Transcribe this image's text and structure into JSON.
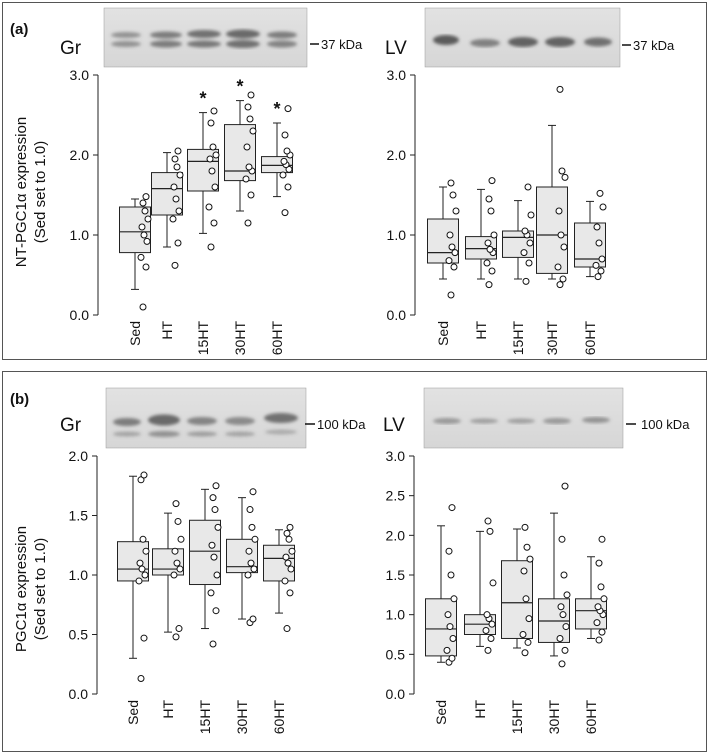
{
  "panels": [
    {
      "label": "(a)",
      "ylabel_line1": "NT-PGC1α expression",
      "ylabel_line2": "(Sed set to 1.0)",
      "blots": [
        {
          "tissue": "Gr",
          "marker": "37 kDa"
        },
        {
          "tissue": "LV",
          "marker": "37 kDa"
        }
      ]
    },
    {
      "label": "(b)",
      "ylabel_line1": "PGC1α expression",
      "ylabel_line2": "(Sed set to 1.0)",
      "blots": [
        {
          "tissue": "Gr",
          "marker": "100 kDa"
        },
        {
          "tissue": "LV",
          "marker": "100 kDa"
        }
      ]
    }
  ],
  "chart_data": [
    {
      "type": "box",
      "title": "Gr",
      "panel": "(a)",
      "xlabel": "",
      "ylabel": "NT-PGC1α expression (Sed set to 1.0)",
      "ylim": [
        0,
        3.0
      ],
      "yticks": [
        0.0,
        1.0,
        2.0,
        3.0
      ],
      "ytick_labels": [
        "0.0",
        "1.0",
        "2.0",
        "3.0"
      ],
      "categories": [
        "Sed",
        "HT",
        "15HT",
        "30HT",
        "60HT"
      ],
      "boxes": [
        {
          "min": 0.32,
          "q1": 0.78,
          "median": 1.04,
          "q3": 1.35,
          "max": 1.45,
          "points": [
            0.1,
            0.6,
            0.72,
            0.92,
            1.0,
            1.1,
            1.2,
            1.3,
            1.4,
            1.48
          ]
        },
        {
          "min": 0.85,
          "q1": 1.25,
          "median": 1.58,
          "q3": 1.78,
          "max": 2.03,
          "points": [
            0.62,
            0.9,
            1.2,
            1.3,
            1.45,
            1.6,
            1.75,
            1.85,
            1.95,
            2.05
          ]
        },
        {
          "min": 1.02,
          "q1": 1.55,
          "median": 1.92,
          "q3": 2.07,
          "max": 2.53,
          "points": [
            0.85,
            1.15,
            1.35,
            1.6,
            1.8,
            1.95,
            2.0,
            2.1,
            2.4,
            2.55
          ]
        },
        {
          "min": 1.3,
          "q1": 1.68,
          "median": 1.8,
          "q3": 2.38,
          "max": 2.68,
          "points": [
            1.15,
            1.5,
            1.7,
            1.8,
            1.85,
            2.1,
            2.3,
            2.45,
            2.6,
            2.75
          ]
        },
        {
          "min": 1.48,
          "q1": 1.78,
          "median": 1.87,
          "q3": 1.98,
          "max": 2.4,
          "points": [
            1.28,
            1.6,
            1.75,
            1.82,
            1.88,
            1.92,
            2.0,
            2.05,
            2.25,
            2.58
          ]
        }
      ],
      "significance": [
        "",
        "",
        "*",
        "*",
        "*"
      ]
    },
    {
      "type": "box",
      "title": "LV",
      "panel": "(a)",
      "xlabel": "",
      "ylabel": "",
      "ylim": [
        0,
        3.0
      ],
      "yticks": [
        0.0,
        1.0,
        2.0,
        3.0
      ],
      "ytick_labels": [
        "0.0",
        "1.0",
        "2.0",
        "3.0"
      ],
      "categories": [
        "Sed",
        "HT",
        "15HT",
        "30HT",
        "60HT"
      ],
      "boxes": [
        {
          "min": 0.45,
          "q1": 0.65,
          "median": 0.78,
          "q3": 1.2,
          "max": 1.6,
          "points": [
            0.25,
            0.6,
            0.68,
            0.78,
            0.85,
            1.0,
            1.3,
            1.5,
            1.65
          ]
        },
        {
          "min": 0.45,
          "q1": 0.7,
          "median": 0.83,
          "q3": 0.98,
          "max": 1.57,
          "points": [
            0.38,
            0.55,
            0.65,
            0.78,
            0.82,
            0.9,
            1.0,
            1.3,
            1.45,
            1.68
          ]
        },
        {
          "min": 0.45,
          "q1": 0.72,
          "median": 0.97,
          "q3": 1.05,
          "max": 1.43,
          "points": [
            0.42,
            0.65,
            0.78,
            0.9,
            1.0,
            1.05,
            1.25,
            1.6
          ]
        },
        {
          "min": 0.45,
          "q1": 0.52,
          "median": 1.0,
          "q3": 1.6,
          "max": 2.37,
          "points": [
            0.38,
            0.45,
            0.6,
            0.85,
            1.0,
            1.3,
            1.72,
            1.8,
            2.82
          ]
        },
        {
          "min": 0.48,
          "q1": 0.6,
          "median": 0.7,
          "q3": 1.15,
          "max": 1.42,
          "points": [
            0.48,
            0.55,
            0.62,
            0.7,
            0.9,
            1.1,
            1.35,
            1.52
          ]
        }
      ],
      "significance": [
        "",
        "",
        "",
        "",
        ""
      ]
    },
    {
      "type": "box",
      "title": "Gr",
      "panel": "(b)",
      "xlabel": "",
      "ylabel": "PGC1α expression (Sed set to 1.0)",
      "ylim": [
        0,
        2.0
      ],
      "yticks": [
        0.0,
        0.5,
        1.0,
        1.5,
        2.0
      ],
      "ytick_labels": [
        "0.0",
        "0.5",
        "1.0",
        "1.5",
        "2.0"
      ],
      "categories": [
        "Sed",
        "HT",
        "15HT",
        "30HT",
        "60HT"
      ],
      "boxes": [
        {
          "min": 0.3,
          "q1": 0.95,
          "median": 1.05,
          "q3": 1.28,
          "max": 1.83,
          "points": [
            0.13,
            0.47,
            0.95,
            1.0,
            1.05,
            1.1,
            1.2,
            1.3,
            1.8,
            1.84
          ]
        },
        {
          "min": 0.52,
          "q1": 1.0,
          "median": 1.05,
          "q3": 1.22,
          "max": 1.52,
          "points": [
            0.48,
            0.55,
            1.0,
            1.05,
            1.1,
            1.2,
            1.3,
            1.45,
            1.6
          ]
        },
        {
          "min": 0.55,
          "q1": 0.92,
          "median": 1.2,
          "q3": 1.46,
          "max": 1.72,
          "points": [
            0.42,
            0.7,
            0.85,
            1.0,
            1.15,
            1.25,
            1.4,
            1.55,
            1.65,
            1.75
          ]
        },
        {
          "min": 0.63,
          "q1": 1.02,
          "median": 1.07,
          "q3": 1.3,
          "max": 1.65,
          "points": [
            0.6,
            0.63,
            1.0,
            1.05,
            1.1,
            1.2,
            1.3,
            1.4,
            1.55,
            1.7
          ]
        },
        {
          "min": 0.68,
          "q1": 0.95,
          "median": 1.14,
          "q3": 1.25,
          "max": 1.38,
          "points": [
            0.55,
            0.85,
            0.95,
            1.05,
            1.1,
            1.15,
            1.2,
            1.3,
            1.35,
            1.4
          ]
        }
      ],
      "significance": [
        "",
        "",
        "",
        "",
        ""
      ]
    },
    {
      "type": "box",
      "title": "LV",
      "panel": "(b)",
      "xlabel": "",
      "ylabel": "",
      "ylim": [
        0,
        3.0
      ],
      "yticks": [
        0.0,
        0.5,
        1.0,
        1.5,
        2.0,
        2.5,
        3.0
      ],
      "ytick_labels": [
        "0.0",
        "0.5",
        "1.0",
        "1.5",
        "2.0",
        "2.5",
        "3.0"
      ],
      "categories": [
        "Sed",
        "HT",
        "15HT",
        "30HT",
        "60HT"
      ],
      "boxes": [
        {
          "min": 0.4,
          "q1": 0.48,
          "median": 0.82,
          "q3": 1.2,
          "max": 2.12,
          "points": [
            0.4,
            0.45,
            0.55,
            0.7,
            0.85,
            1.0,
            1.2,
            1.5,
            1.8,
            2.35
          ]
        },
        {
          "min": 0.6,
          "q1": 0.75,
          "median": 0.88,
          "q3": 1.0,
          "max": 2.05,
          "points": [
            0.55,
            0.7,
            0.8,
            0.88,
            0.95,
            1.0,
            1.4,
            2.05,
            2.18
          ]
        },
        {
          "min": 0.58,
          "q1": 0.7,
          "median": 1.15,
          "q3": 1.68,
          "max": 2.08,
          "points": [
            0.52,
            0.65,
            0.75,
            0.95,
            1.2,
            1.55,
            1.7,
            1.85,
            2.1
          ]
        },
        {
          "min": 0.48,
          "q1": 0.65,
          "median": 0.92,
          "q3": 1.2,
          "max": 2.28,
          "points": [
            0.38,
            0.55,
            0.7,
            0.85,
            1.0,
            1.1,
            1.25,
            1.5,
            1.95,
            2.62
          ]
        },
        {
          "min": 0.7,
          "q1": 0.82,
          "median": 1.05,
          "q3": 1.2,
          "max": 1.73,
          "points": [
            0.68,
            0.78,
            0.9,
            1.0,
            1.05,
            1.1,
            1.2,
            1.35,
            1.65,
            1.95
          ]
        }
      ],
      "significance": [
        "",
        "",
        "",
        "",
        ""
      ]
    }
  ]
}
